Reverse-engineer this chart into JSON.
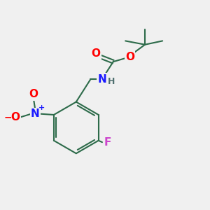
{
  "bg_color": "#f0f0f0",
  "bond_color": "#2d6b4a",
  "bond_width": 1.5,
  "atom_colors": {
    "O": "#ff0000",
    "N_amine": "#1a1aff",
    "N_nitro": "#1a1aff",
    "F": "#cc44cc",
    "H": "#507070",
    "minus": "#ff0000",
    "plus": "#1a1aff"
  },
  "font_size_atoms": 11,
  "font_size_h": 9,
  "font_size_charge": 8
}
